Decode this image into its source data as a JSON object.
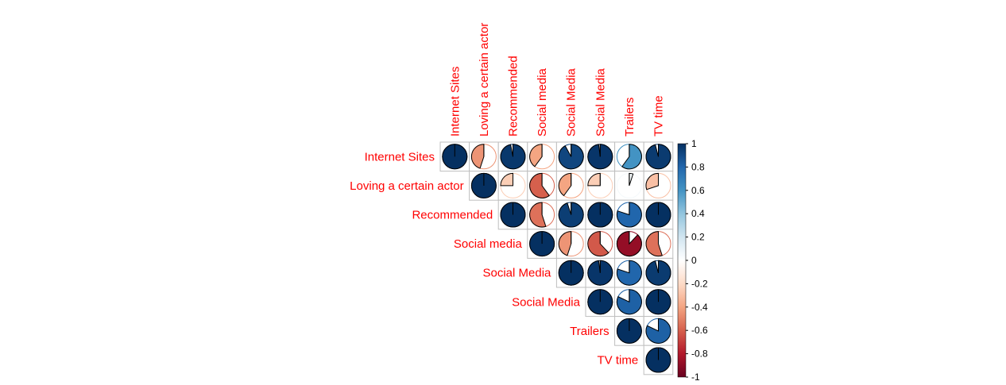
{
  "chart_data": {
    "type": "heatmap",
    "method": "pie",
    "layout": "upper-triangle",
    "variables": [
      "Internet Sites",
      "Loving a certain actor",
      "Recommended",
      "Social media",
      "Social Media",
      "Social Media",
      "Trailers",
      "TV time"
    ],
    "matrix": [
      [
        1.0,
        -0.45,
        0.97,
        -0.4,
        0.92,
        0.98,
        0.6,
        0.96
      ],
      [
        -0.45,
        1.0,
        -0.25,
        -0.6,
        -0.4,
        -0.25,
        0.05,
        -0.3
      ],
      [
        0.97,
        -0.25,
        1.0,
        -0.55,
        0.95,
        1.0,
        0.8,
        1.0
      ],
      [
        -0.4,
        -0.6,
        -0.55,
        1.0,
        -0.45,
        -0.62,
        -0.88,
        -0.55
      ],
      [
        0.92,
        -0.4,
        0.95,
        -0.45,
        1.0,
        0.98,
        0.8,
        0.96
      ],
      [
        0.98,
        -0.25,
        1.0,
        -0.62,
        0.98,
        1.0,
        0.82,
        1.0
      ],
      [
        0.6,
        0.05,
        0.8,
        -0.88,
        0.8,
        0.82,
        1.0,
        0.82
      ],
      [
        0.96,
        -0.3,
        1.0,
        -0.55,
        0.96,
        1.0,
        0.82,
        1.0
      ]
    ],
    "colorbar": {
      "range": [
        -1,
        1
      ],
      "ticks": [
        "1",
        "0.8",
        "0.6",
        "0.4",
        "0.2",
        "0",
        "-0.2",
        "-0.4",
        "-0.6",
        "-0.8",
        "-1"
      ],
      "low_color": "#67001F",
      "mid_color": "#FFFFFF",
      "high_color": "#053061"
    },
    "label_color": "#FF0000"
  }
}
